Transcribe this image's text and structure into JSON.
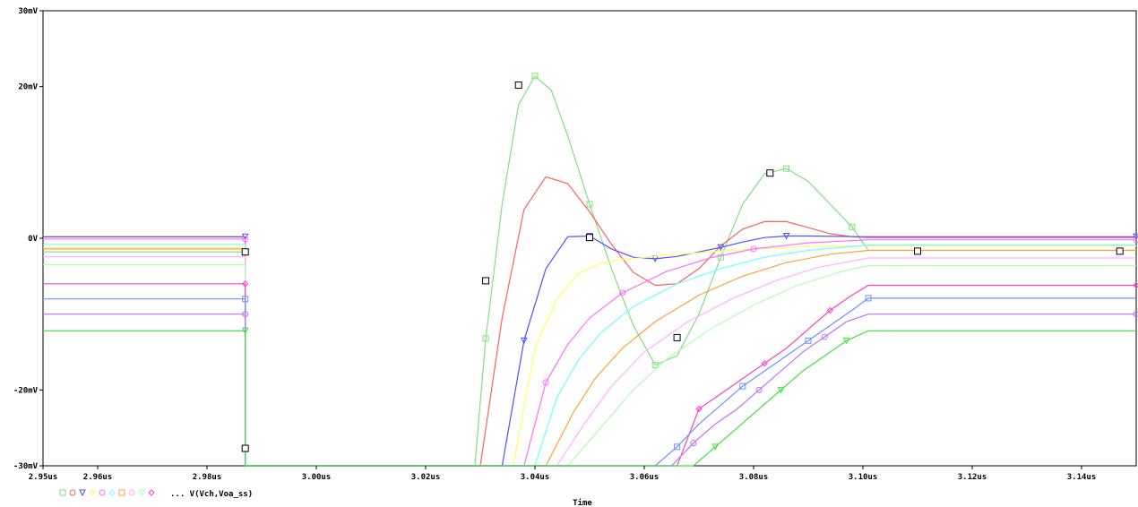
{
  "chart_data": {
    "type": "line",
    "xlabel": "Time",
    "ylabel": "",
    "xlim": [
      2.95,
      3.15
    ],
    "ylim": [
      -30,
      30
    ],
    "x_ticks": [
      {
        "v": 2.95,
        "label": "2.95us"
      },
      {
        "v": 2.96,
        "label": "2.96us"
      },
      {
        "v": 2.98,
        "label": "2.98us"
      },
      {
        "v": 3.0,
        "label": "3.00us"
      },
      {
        "v": 3.02,
        "label": "3.02us"
      },
      {
        "v": 3.04,
        "label": "3.04us"
      },
      {
        "v": 3.06,
        "label": "3.06us"
      },
      {
        "v": 3.08,
        "label": "3.08us"
      },
      {
        "v": 3.1,
        "label": "3.10us"
      },
      {
        "v": 3.12,
        "label": "3.12us"
      },
      {
        "v": 3.14,
        "label": "3.14us"
      }
    ],
    "y_ticks": [
      {
        "v": 30,
        "label": "30mV"
      },
      {
        "v": 20,
        "label": "20mV"
      },
      {
        "v": 0,
        "label": "0V"
      },
      {
        "v": -20,
        "label": "-20mV"
      },
      {
        "v": -30,
        "label": "-30mV"
      }
    ],
    "legend_text": "... V(Vch,Voa_ss)",
    "series": [
      {
        "color": "#80e080",
        "marker": "square",
        "points": [
          [
            2.95,
            -1.8
          ],
          [
            2.987,
            -1.8
          ],
          [
            2.987,
            -30
          ],
          [
            3.029,
            -30
          ],
          [
            3.031,
            -13.2
          ],
          [
            3.034,
            4.5
          ],
          [
            3.037,
            17.6
          ],
          [
            3.04,
            21.4
          ],
          [
            3.043,
            19.5
          ],
          [
            3.046,
            13.5
          ],
          [
            3.05,
            4.5
          ],
          [
            3.054,
            -4
          ],
          [
            3.058,
            -11.5
          ],
          [
            3.062,
            -16.7
          ],
          [
            3.066,
            -15.5
          ],
          [
            3.07,
            -10
          ],
          [
            3.074,
            -2.5
          ],
          [
            3.078,
            4.5
          ],
          [
            3.082,
            8.5
          ],
          [
            3.086,
            9.2
          ],
          [
            3.09,
            7.5
          ],
          [
            3.094,
            4.5
          ],
          [
            3.098,
            1.5
          ],
          [
            3.101,
            -1.6
          ],
          [
            3.15,
            -1.6
          ]
        ]
      },
      {
        "color": "#ff6060",
        "marker": "none",
        "points": [
          [
            2.95,
            0.2
          ],
          [
            2.987,
            0.2
          ],
          [
            2.987,
            -30
          ],
          [
            3.03,
            -30
          ],
          [
            3.034,
            -10.5
          ],
          [
            3.038,
            3.8
          ],
          [
            3.042,
            8.1
          ],
          [
            3.046,
            7.2
          ],
          [
            3.05,
            3.5
          ],
          [
            3.054,
            -0.8
          ],
          [
            3.058,
            -4.5
          ],
          [
            3.062,
            -6.2
          ],
          [
            3.066,
            -6.0
          ],
          [
            3.07,
            -4
          ],
          [
            3.074,
            -1
          ],
          [
            3.078,
            1.2
          ],
          [
            3.082,
            2.2
          ],
          [
            3.086,
            2.2
          ],
          [
            3.09,
            1.4
          ],
          [
            3.094,
            0.6
          ],
          [
            3.098,
            0.2
          ],
          [
            3.101,
            0.1
          ],
          [
            3.15,
            0.1
          ]
        ]
      },
      {
        "color": "#5050ff",
        "marker": "triangle",
        "points": [
          [
            2.95,
            0.2
          ],
          [
            2.987,
            0.2
          ],
          [
            2.987,
            -30
          ],
          [
            3.034,
            -30
          ],
          [
            3.038,
            -13.5
          ],
          [
            3.042,
            -4
          ],
          [
            3.046,
            0.2
          ],
          [
            3.05,
            0.3
          ],
          [
            3.054,
            -1.4
          ],
          [
            3.058,
            -2.5
          ],
          [
            3.062,
            -2.7
          ],
          [
            3.066,
            -2.4
          ],
          [
            3.07,
            -1.8
          ],
          [
            3.074,
            -1.2
          ],
          [
            3.078,
            -0.5
          ],
          [
            3.082,
            0.1
          ],
          [
            3.086,
            0.3
          ],
          [
            3.09,
            0.3
          ],
          [
            3.101,
            0.2
          ],
          [
            3.15,
            0.2
          ]
        ]
      },
      {
        "color": "#ffff60",
        "marker": "none",
        "points": [
          [
            2.95,
            -1.2
          ],
          [
            2.987,
            -1.2
          ],
          [
            2.987,
            -30
          ],
          [
            3.036,
            -30
          ],
          [
            3.04,
            -14.5
          ],
          [
            3.044,
            -8
          ],
          [
            3.048,
            -4.6
          ],
          [
            3.052,
            -3.3
          ],
          [
            3.056,
            -2.8
          ],
          [
            3.062,
            -2.4
          ],
          [
            3.07,
            -1.9
          ],
          [
            3.08,
            -1.4
          ],
          [
            3.09,
            -1.1
          ],
          [
            3.101,
            -1.0
          ],
          [
            3.15,
            -1.0
          ]
        ]
      },
      {
        "color": "#ff70ff",
        "marker": "circle",
        "points": [
          [
            2.95,
            -0.1
          ],
          [
            2.987,
            -0.1
          ],
          [
            2.987,
            -30
          ],
          [
            3.038,
            -30
          ],
          [
            3.042,
            -19
          ],
          [
            3.046,
            -14
          ],
          [
            3.05,
            -10.5
          ],
          [
            3.056,
            -7.2
          ],
          [
            3.064,
            -4.4
          ],
          [
            3.072,
            -2.6
          ],
          [
            3.08,
            -1.4
          ],
          [
            3.09,
            -0.6
          ],
          [
            3.101,
            -0.2
          ],
          [
            3.15,
            -0.2
          ]
        ]
      },
      {
        "color": "#70ffff",
        "marker": "none",
        "points": [
          [
            2.95,
            -0.8
          ],
          [
            2.987,
            -0.8
          ],
          [
            2.987,
            -30
          ],
          [
            3.04,
            -30
          ],
          [
            3.044,
            -21
          ],
          [
            3.048,
            -16
          ],
          [
            3.052,
            -12.5
          ],
          [
            3.058,
            -9
          ],
          [
            3.066,
            -6
          ],
          [
            3.074,
            -4
          ],
          [
            3.082,
            -2.5
          ],
          [
            3.09,
            -1.6
          ],
          [
            3.101,
            -0.9
          ],
          [
            3.15,
            -0.9
          ]
        ]
      },
      {
        "color": "#ffa040",
        "marker": "none",
        "points": [
          [
            2.95,
            -1.4
          ],
          [
            2.987,
            -1.4
          ],
          [
            2.987,
            -30
          ],
          [
            3.042,
            -30
          ],
          [
            3.047,
            -23
          ],
          [
            3.051,
            -18.5
          ],
          [
            3.056,
            -14.5
          ],
          [
            3.062,
            -11
          ],
          [
            3.07,
            -7.5
          ],
          [
            3.078,
            -5
          ],
          [
            3.086,
            -3.2
          ],
          [
            3.094,
            -2.1
          ],
          [
            3.101,
            -1.6
          ],
          [
            3.15,
            -1.6
          ]
        ]
      },
      {
        "color": "#ffb0ff",
        "marker": "none",
        "points": [
          [
            2.95,
            -2.4
          ],
          [
            2.987,
            -2.4
          ],
          [
            2.987,
            -30
          ],
          [
            3.044,
            -30
          ],
          [
            3.049,
            -24.5
          ],
          [
            3.054,
            -19.5
          ],
          [
            3.06,
            -15
          ],
          [
            3.068,
            -11
          ],
          [
            3.076,
            -8
          ],
          [
            3.084,
            -5.6
          ],
          [
            3.092,
            -3.8
          ],
          [
            3.101,
            -2.6
          ],
          [
            3.15,
            -2.6
          ]
        ]
      },
      {
        "color": "#b0ffb0",
        "marker": "none",
        "points": [
          [
            2.95,
            -3.5
          ],
          [
            2.987,
            -3.5
          ],
          [
            2.987,
            -30
          ],
          [
            3.046,
            -30
          ],
          [
            3.052,
            -25
          ],
          [
            3.058,
            -20
          ],
          [
            3.064,
            -16
          ],
          [
            3.072,
            -12
          ],
          [
            3.08,
            -8.8
          ],
          [
            3.088,
            -6.2
          ],
          [
            3.096,
            -4.4
          ],
          [
            3.101,
            -3.6
          ],
          [
            3.15,
            -3.6
          ]
        ]
      },
      {
        "color": "#ff40c0",
        "marker": "diamond",
        "points": [
          [
            2.95,
            -6.0
          ],
          [
            2.987,
            -6.0
          ],
          [
            2.987,
            -30
          ],
          [
            3.066,
            -30
          ],
          [
            3.07,
            -22.5
          ],
          [
            3.074,
            -20.5
          ],
          [
            3.078,
            -18.5
          ],
          [
            3.082,
            -16.5
          ],
          [
            3.086,
            -14.5
          ],
          [
            3.09,
            -12
          ],
          [
            3.094,
            -9.5
          ],
          [
            3.098,
            -7.5
          ],
          [
            3.101,
            -6.2
          ],
          [
            3.15,
            -6.2
          ]
        ]
      },
      {
        "color": "#7090ff",
        "marker": "square",
        "points": [
          [
            2.95,
            -8.0
          ],
          [
            2.987,
            -8.0
          ],
          [
            2.987,
            -30
          ],
          [
            3.062,
            -30
          ],
          [
            3.066,
            -27.5
          ],
          [
            3.07,
            -24.5
          ],
          [
            3.074,
            -22
          ],
          [
            3.078,
            -19.5
          ],
          [
            3.082,
            -17.5
          ],
          [
            3.086,
            -15.5
          ],
          [
            3.09,
            -13.5
          ],
          [
            3.094,
            -11.5
          ],
          [
            3.098,
            -9.5
          ],
          [
            3.101,
            -7.9
          ],
          [
            3.15,
            -7.9
          ]
        ]
      },
      {
        "color": "#c070ff",
        "marker": "circle",
        "points": [
          [
            2.95,
            -10.0
          ],
          [
            2.987,
            -10.0
          ],
          [
            2.987,
            -30
          ],
          [
            3.065,
            -30
          ],
          [
            3.069,
            -27
          ],
          [
            3.073,
            -24.5
          ],
          [
            3.077,
            -22.5
          ],
          [
            3.081,
            -20
          ],
          [
            3.085,
            -17.5
          ],
          [
            3.089,
            -15
          ],
          [
            3.093,
            -13
          ],
          [
            3.097,
            -11
          ],
          [
            3.101,
            -10.0
          ],
          [
            3.15,
            -10.0
          ]
        ]
      },
      {
        "color": "#40e040",
        "marker": "triangle",
        "points": [
          [
            2.95,
            -12.2
          ],
          [
            2.987,
            -12.2
          ],
          [
            2.987,
            -30
          ],
          [
            3.069,
            -30
          ],
          [
            3.073,
            -27.5
          ],
          [
            3.077,
            -25
          ],
          [
            3.081,
            -22.5
          ],
          [
            3.085,
            -20
          ],
          [
            3.089,
            -17.5
          ],
          [
            3.093,
            -15.5
          ],
          [
            3.097,
            -13.5
          ],
          [
            3.101,
            -12.2
          ],
          [
            3.15,
            -12.2
          ]
        ]
      }
    ],
    "cursor_markers": [
      [
        2.987,
        -1.8
      ],
      [
        2.987,
        -27.7
      ],
      [
        3.031,
        -5.6
      ],
      [
        3.037,
        20.2
      ],
      [
        3.05,
        0.1
      ],
      [
        3.066,
        -13.1
      ],
      [
        3.083,
        8.6
      ],
      [
        3.11,
        -1.7
      ],
      [
        3.147,
        -1.7
      ]
    ]
  }
}
